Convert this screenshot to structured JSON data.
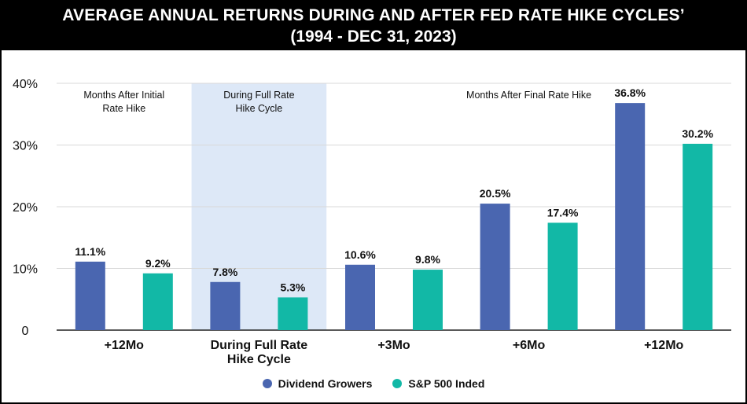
{
  "header": {
    "title_line1": "AVERAGE ANNUAL RETURNS DURING AND AFTER FED RATE HIKE CYCLES’",
    "title_line2": "(1994 - DEC 31, 2023)"
  },
  "chart_data": {
    "type": "bar",
    "ylim": [
      0,
      40
    ],
    "yticks": [
      {
        "value": 0,
        "label": "0"
      },
      {
        "value": 10,
        "label": "10%"
      },
      {
        "value": 20,
        "label": "20%"
      },
      {
        "value": 30,
        "label": "30%"
      },
      {
        "value": 40,
        "label": "40%"
      }
    ],
    "grid": true,
    "categories": [
      "+12Mo",
      "During Full Rate Hike Cycle",
      "+3Mo",
      "+6Mo",
      "+12Mo"
    ],
    "category_labels": [
      [
        "+12Mo"
      ],
      [
        "During Full Rate",
        "Hike Cycle"
      ],
      [
        "+3Mo"
      ],
      [
        "+6Mo"
      ],
      [
        "+12Mo"
      ]
    ],
    "series": [
      {
        "name": "Dividend Growers",
        "color": "#4a66b0",
        "values": [
          11.1,
          7.8,
          10.6,
          20.5,
          36.8
        ],
        "labels": [
          "11.1%",
          "7.8%",
          "10.6%",
          "20.5%",
          "36.8%"
        ]
      },
      {
        "name": "S&P 500 Inded",
        "color": "#12b8a6",
        "values": [
          9.2,
          5.3,
          9.8,
          17.4,
          30.2
        ],
        "labels": [
          "9.2%",
          "5.3%",
          "9.8%",
          "17.4%",
          "30.2%"
        ]
      }
    ],
    "highlight": {
      "category_index": 1,
      "color": "#dde8f7"
    },
    "annotations": [
      {
        "lines": [
          "Months After Initial",
          "Rate Hike"
        ]
      },
      {
        "lines": [
          "During Full Rate",
          "Hike Cycle"
        ]
      },
      {
        "lines": [
          "Months After Final Rate Hike"
        ]
      }
    ],
    "legend_position": "bottom-center"
  }
}
